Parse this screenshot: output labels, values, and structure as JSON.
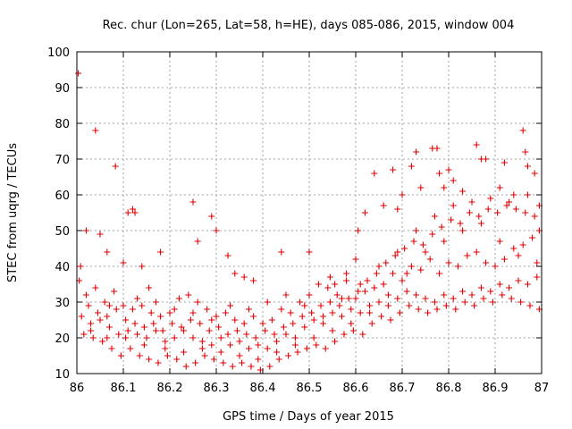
{
  "chart_data": {
    "type": "scatter",
    "title": "Rec. chur (Lon=265, Lat=58, h=HE), days 085-086, 2015, window 004",
    "xlabel": "GPS time / Days of year 2015",
    "ylabel": "STEC from uqrg / TECUs",
    "xlim": [
      86,
      87
    ],
    "ylim": [
      10,
      100
    ],
    "xticks": [
      "86",
      "86.1",
      "86.2",
      "86.3",
      "86.4",
      "86.5",
      "86.6",
      "86.7",
      "86.8",
      "86.9",
      "87"
    ],
    "yticks": [
      "10",
      "20",
      "30",
      "40",
      "50",
      "60",
      "70",
      "80",
      "90",
      "100"
    ],
    "grid": true,
    "legend": "none",
    "marker": "+",
    "color": "#e00000",
    "series": [
      {
        "points": [
          [
            86.003,
            94
          ],
          [
            86.008,
            40
          ],
          [
            86.02,
            50
          ],
          [
            86.04,
            78
          ],
          [
            86.05,
            49
          ],
          [
            86.065,
            44
          ],
          [
            86.083,
            68
          ],
          [
            86.1,
            41
          ],
          [
            86.11,
            55
          ],
          [
            86.12,
            56
          ],
          [
            86.125,
            55
          ],
          [
            86.14,
            40
          ],
          [
            86.155,
            34
          ],
          [
            86.18,
            44
          ],
          [
            86.25,
            58
          ],
          [
            86.26,
            47
          ],
          [
            86.29,
            54
          ],
          [
            86.3,
            50
          ],
          [
            86.325,
            43
          ],
          [
            86.34,
            38
          ],
          [
            86.36,
            37
          ],
          [
            86.38,
            36
          ],
          [
            86.44,
            44
          ],
          [
            86.5,
            44
          ],
          [
            86.545,
            37
          ],
          [
            86.555,
            35
          ],
          [
            86.58,
            38
          ],
          [
            86.6,
            42
          ],
          [
            86.605,
            50
          ],
          [
            86.62,
            55
          ],
          [
            86.64,
            66
          ],
          [
            86.66,
            57
          ],
          [
            86.68,
            67
          ],
          [
            86.69,
            56
          ],
          [
            86.7,
            60
          ],
          [
            86.72,
            68
          ],
          [
            86.73,
            72
          ],
          [
            86.74,
            62
          ],
          [
            86.765,
            73
          ],
          [
            86.775,
            73
          ],
          [
            86.78,
            66
          ],
          [
            86.79,
            62
          ],
          [
            86.8,
            67
          ],
          [
            86.81,
            64
          ],
          [
            86.83,
            61
          ],
          [
            86.86,
            74
          ],
          [
            86.87,
            70
          ],
          [
            86.88,
            70
          ],
          [
            86.91,
            62
          ],
          [
            86.92,
            69
          ],
          [
            86.94,
            60
          ],
          [
            86.96,
            78
          ],
          [
            86.965,
            72
          ],
          [
            86.97,
            68
          ],
          [
            86.985,
            66
          ],
          [
            86.995,
            57
          ],
          [
            86.005,
            36
          ],
          [
            86.02,
            32
          ],
          [
            86.04,
            34
          ],
          [
            86.06,
            30
          ],
          [
            86.08,
            33
          ],
          [
            86.1,
            29
          ],
          [
            86.12,
            28
          ],
          [
            86.14,
            29
          ],
          [
            86.16,
            27
          ],
          [
            86.18,
            26
          ],
          [
            86.2,
            27
          ],
          [
            86.22,
            31
          ],
          [
            86.24,
            32
          ],
          [
            86.26,
            30
          ],
          [
            86.28,
            28
          ],
          [
            86.3,
            26
          ],
          [
            86.32,
            27
          ],
          [
            86.34,
            25
          ],
          [
            86.36,
            24
          ],
          [
            86.38,
            26
          ],
          [
            86.4,
            24
          ],
          [
            86.42,
            25
          ],
          [
            86.44,
            28
          ],
          [
            86.46,
            27
          ],
          [
            86.48,
            30
          ],
          [
            86.5,
            32
          ],
          [
            86.52,
            35
          ],
          [
            86.54,
            34
          ],
          [
            86.56,
            32
          ],
          [
            86.58,
            36
          ],
          [
            86.6,
            31
          ],
          [
            86.62,
            33
          ],
          [
            86.64,
            34
          ],
          [
            86.66,
            35
          ],
          [
            86.68,
            38
          ],
          [
            86.7,
            36
          ],
          [
            86.72,
            40
          ],
          [
            86.74,
            39
          ],
          [
            86.76,
            42
          ],
          [
            86.78,
            38
          ],
          [
            86.8,
            41
          ],
          [
            86.82,
            40
          ],
          [
            86.84,
            43
          ],
          [
            86.86,
            44
          ],
          [
            86.88,
            41
          ],
          [
            86.9,
            40
          ],
          [
            86.92,
            42
          ],
          [
            86.94,
            45
          ],
          [
            86.96,
            46
          ],
          [
            86.98,
            48
          ],
          [
            86.995,
            50
          ],
          [
            86.01,
            26
          ],
          [
            86.03,
            24
          ],
          [
            86.05,
            25
          ],
          [
            86.07,
            23
          ],
          [
            86.09,
            21
          ],
          [
            86.11,
            22
          ],
          [
            86.13,
            21
          ],
          [
            86.15,
            20
          ],
          [
            86.17,
            22
          ],
          [
            86.19,
            19
          ],
          [
            86.21,
            20
          ],
          [
            86.23,
            22
          ],
          [
            86.25,
            20
          ],
          [
            86.27,
            19
          ],
          [
            86.29,
            18
          ],
          [
            86.31,
            20
          ],
          [
            86.33,
            18
          ],
          [
            86.35,
            19
          ],
          [
            86.37,
            17
          ],
          [
            86.39,
            18
          ],
          [
            86.41,
            17
          ],
          [
            86.43,
            19
          ],
          [
            86.45,
            21
          ],
          [
            86.47,
            20
          ],
          [
            86.49,
            23
          ],
          [
            86.51,
            25
          ],
          [
            86.53,
            24
          ],
          [
            86.55,
            27
          ],
          [
            86.57,
            26
          ],
          [
            86.59,
            28
          ],
          [
            86.61,
            27
          ],
          [
            86.63,
            29
          ],
          [
            86.65,
            30
          ],
          [
            86.67,
            32
          ],
          [
            86.69,
            31
          ],
          [
            86.71,
            33
          ],
          [
            86.73,
            32
          ],
          [
            86.75,
            31
          ],
          [
            86.77,
            30
          ],
          [
            86.79,
            32
          ],
          [
            86.81,
            31
          ],
          [
            86.83,
            33
          ],
          [
            86.85,
            32
          ],
          [
            86.87,
            34
          ],
          [
            86.89,
            33
          ],
          [
            86.91,
            35
          ],
          [
            86.93,
            34
          ],
          [
            86.95,
            36
          ],
          [
            86.97,
            35
          ],
          [
            86.99,
            37
          ],
          [
            86.015,
            21
          ],
          [
            86.035,
            20
          ],
          [
            86.055,
            19
          ],
          [
            86.075,
            17
          ],
          [
            86.095,
            15
          ],
          [
            86.115,
            17
          ],
          [
            86.135,
            15
          ],
          [
            86.155,
            14
          ],
          [
            86.175,
            13
          ],
          [
            86.195,
            15
          ],
          [
            86.215,
            14
          ],
          [
            86.235,
            12
          ],
          [
            86.255,
            13
          ],
          [
            86.275,
            15
          ],
          [
            86.295,
            14
          ],
          [
            86.315,
            13
          ],
          [
            86.335,
            12
          ],
          [
            86.355,
            13
          ],
          [
            86.375,
            12
          ],
          [
            86.395,
            11
          ],
          [
            86.415,
            12
          ],
          [
            86.435,
            14
          ],
          [
            86.455,
            15
          ],
          [
            86.475,
            16
          ],
          [
            86.495,
            17
          ],
          [
            86.515,
            18
          ],
          [
            86.535,
            17
          ],
          [
            86.555,
            19
          ],
          [
            86.575,
            21
          ],
          [
            86.595,
            22
          ],
          [
            86.615,
            21
          ],
          [
            86.635,
            24
          ],
          [
            86.655,
            26
          ],
          [
            86.675,
            25
          ],
          [
            86.695,
            27
          ],
          [
            86.715,
            29
          ],
          [
            86.735,
            28
          ],
          [
            86.755,
            27
          ],
          [
            86.775,
            28
          ],
          [
            86.795,
            29
          ],
          [
            86.815,
            28
          ],
          [
            86.835,
            30
          ],
          [
            86.855,
            29
          ],
          [
            86.875,
            31
          ],
          [
            86.895,
            30
          ],
          [
            86.915,
            32
          ],
          [
            86.935,
            31
          ],
          [
            86.955,
            30
          ],
          [
            86.975,
            29
          ],
          [
            86.995,
            28
          ],
          [
            86.025,
            29
          ],
          [
            86.045,
            27
          ],
          [
            86.065,
            26
          ],
          [
            86.085,
            28
          ],
          [
            86.105,
            25
          ],
          [
            86.125,
            24
          ],
          [
            86.145,
            23
          ],
          [
            86.165,
            24
          ],
          [
            86.185,
            22
          ],
          [
            86.205,
            24
          ],
          [
            86.225,
            23
          ],
          [
            86.245,
            25
          ],
          [
            86.265,
            24
          ],
          [
            86.285,
            22
          ],
          [
            86.305,
            23
          ],
          [
            86.325,
            21
          ],
          [
            86.345,
            22
          ],
          [
            86.365,
            21
          ],
          [
            86.385,
            20
          ],
          [
            86.405,
            22
          ],
          [
            86.425,
            21
          ],
          [
            86.445,
            23
          ],
          [
            86.465,
            24
          ],
          [
            86.485,
            26
          ],
          [
            86.505,
            27
          ],
          [
            86.525,
            29
          ],
          [
            86.545,
            30
          ],
          [
            86.565,
            29
          ],
          [
            86.585,
            31
          ],
          [
            86.605,
            33
          ],
          [
            86.625,
            36
          ],
          [
            86.645,
            38
          ],
          [
            86.665,
            41
          ],
          [
            86.685,
            43
          ],
          [
            86.705,
            45
          ],
          [
            86.725,
            47
          ],
          [
            86.745,
            46
          ],
          [
            86.765,
            49
          ],
          [
            86.785,
            51
          ],
          [
            86.805,
            53
          ],
          [
            86.825,
            52
          ],
          [
            86.845,
            55
          ],
          [
            86.865,
            54
          ],
          [
            86.885,
            56
          ],
          [
            86.905,
            55
          ],
          [
            86.925,
            57
          ],
          [
            86.945,
            56
          ],
          [
            86.965,
            55
          ],
          [
            86.985,
            54
          ],
          [
            86.065,
            20
          ],
          [
            86.105,
            20
          ],
          [
            86.145,
            18
          ],
          [
            86.19,
            17
          ],
          [
            86.23,
            16
          ],
          [
            86.27,
            17
          ],
          [
            86.31,
            16
          ],
          [
            86.35,
            15
          ],
          [
            86.39,
            14
          ],
          [
            86.43,
            16
          ],
          [
            86.47,
            18
          ],
          [
            86.51,
            20
          ],
          [
            86.55,
            22
          ],
          [
            86.59,
            24
          ],
          [
            86.63,
            27
          ],
          [
            86.67,
            29
          ],
          [
            86.71,
            38
          ],
          [
            86.75,
            44
          ],
          [
            86.79,
            47
          ],
          [
            86.83,
            50
          ],
          [
            86.87,
            52
          ],
          [
            86.91,
            47
          ],
          [
            86.95,
            43
          ],
          [
            86.99,
            41
          ],
          [
            86.03,
            22
          ],
          [
            86.07,
            29
          ],
          [
            86.13,
            31
          ],
          [
            86.17,
            30
          ],
          [
            86.21,
            28
          ],
          [
            86.25,
            27
          ],
          [
            86.29,
            25
          ],
          [
            86.33,
            29
          ],
          [
            86.37,
            28
          ],
          [
            86.41,
            30
          ],
          [
            86.45,
            32
          ],
          [
            86.49,
            29
          ],
          [
            86.53,
            26
          ],
          [
            86.57,
            31
          ],
          [
            86.61,
            35
          ],
          [
            86.65,
            40
          ],
          [
            86.69,
            44
          ],
          [
            86.73,
            50
          ],
          [
            86.77,
            54
          ],
          [
            86.81,
            57
          ],
          [
            86.85,
            58
          ],
          [
            86.89,
            59
          ],
          [
            86.93,
            58
          ],
          [
            86.97,
            60
          ]
        ]
      }
    ]
  }
}
